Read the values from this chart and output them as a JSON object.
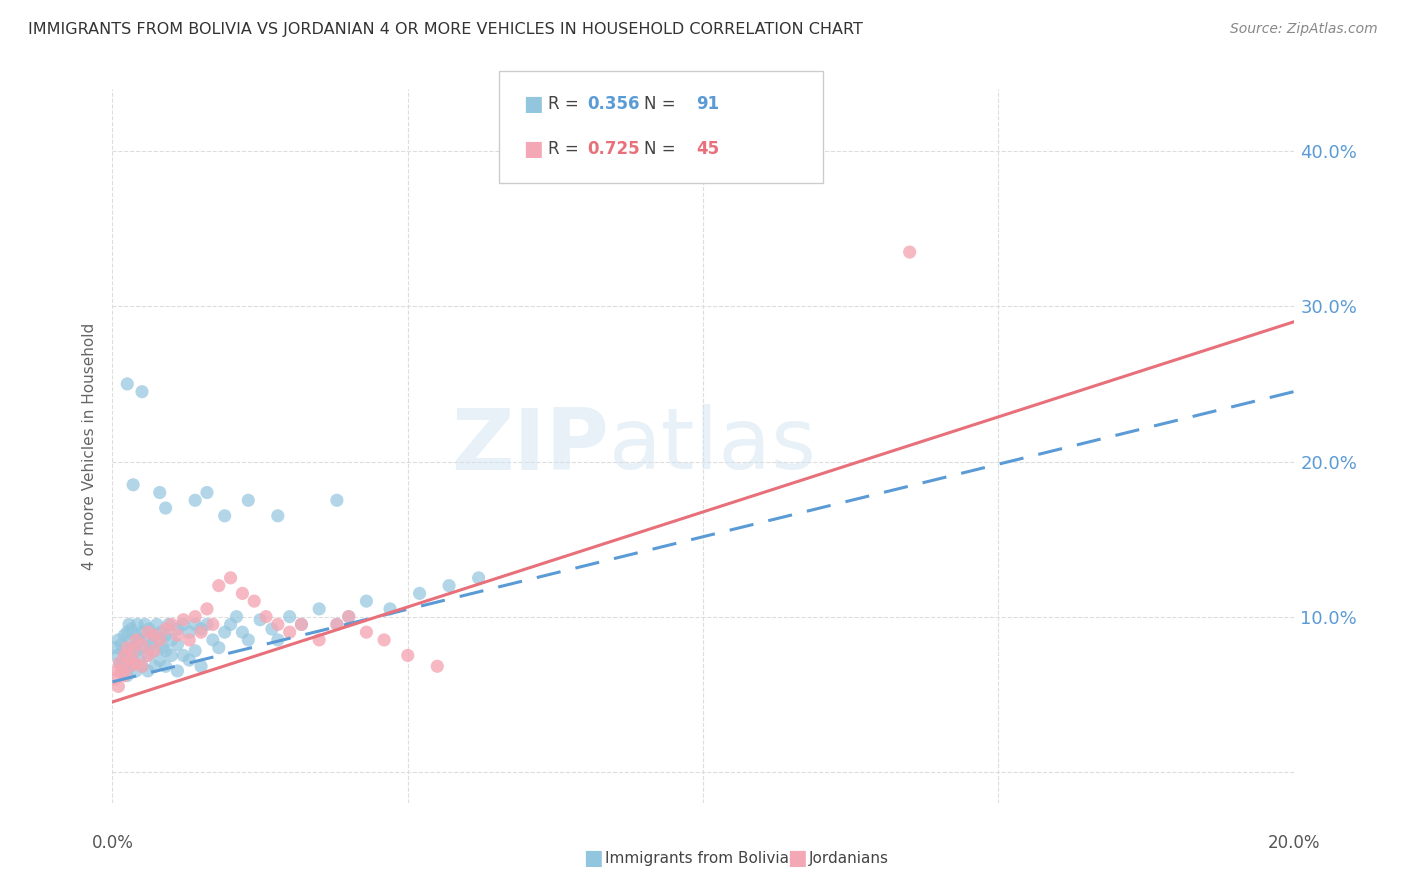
{
  "title": "IMMIGRANTS FROM BOLIVIA VS JORDANIAN 4 OR MORE VEHICLES IN HOUSEHOLD CORRELATION CHART",
  "source": "Source: ZipAtlas.com",
  "ylabel": "4 or more Vehicles in Household",
  "xlim": [
    0.0,
    0.2
  ],
  "ylim": [
    -0.02,
    0.44
  ],
  "bolivia_R": 0.356,
  "bolivia_N": 91,
  "jordan_R": 0.725,
  "jordan_N": 45,
  "bolivia_color": "#92c5de",
  "jordan_color": "#f4a7b4",
  "bolivia_line_color": "#5b9bd5",
  "jordan_line_color": "#e8707a",
  "legend_bolivia_label": "Immigrants from Bolivia",
  "legend_jordan_label": "Jordanians",
  "bolivia_scatter_x": [
    0.0005,
    0.0008,
    0.001,
    0.0012,
    0.0015,
    0.0015,
    0.0018,
    0.002,
    0.002,
    0.0022,
    0.0025,
    0.0025,
    0.0028,
    0.003,
    0.003,
    0.003,
    0.0032,
    0.0035,
    0.0035,
    0.004,
    0.004,
    0.004,
    0.0042,
    0.0045,
    0.0045,
    0.005,
    0.005,
    0.005,
    0.0055,
    0.006,
    0.006,
    0.006,
    0.0062,
    0.0065,
    0.007,
    0.007,
    0.0072,
    0.0075,
    0.008,
    0.008,
    0.0082,
    0.0085,
    0.009,
    0.009,
    0.009,
    0.0095,
    0.01,
    0.01,
    0.011,
    0.011,
    0.011,
    0.012,
    0.012,
    0.013,
    0.013,
    0.014,
    0.014,
    0.015,
    0.015,
    0.016,
    0.017,
    0.018,
    0.019,
    0.02,
    0.021,
    0.022,
    0.023,
    0.025,
    0.027,
    0.028,
    0.03,
    0.032,
    0.035,
    0.038,
    0.04,
    0.043,
    0.047,
    0.052,
    0.057,
    0.062,
    0.005,
    0.0025,
    0.008,
    0.009,
    0.0035,
    0.014,
    0.016,
    0.019,
    0.023,
    0.028,
    0.038
  ],
  "bolivia_scatter_y": [
    0.08,
    0.075,
    0.085,
    0.07,
    0.082,
    0.068,
    0.078,
    0.088,
    0.065,
    0.072,
    0.062,
    0.09,
    0.095,
    0.085,
    0.075,
    0.068,
    0.092,
    0.08,
    0.07,
    0.088,
    0.078,
    0.065,
    0.095,
    0.085,
    0.072,
    0.09,
    0.08,
    0.068,
    0.095,
    0.085,
    0.075,
    0.065,
    0.092,
    0.082,
    0.088,
    0.078,
    0.068,
    0.095,
    0.085,
    0.072,
    0.09,
    0.08,
    0.088,
    0.078,
    0.068,
    0.095,
    0.085,
    0.075,
    0.092,
    0.082,
    0.065,
    0.095,
    0.075,
    0.09,
    0.072,
    0.095,
    0.078,
    0.092,
    0.068,
    0.095,
    0.085,
    0.08,
    0.09,
    0.095,
    0.1,
    0.09,
    0.085,
    0.098,
    0.092,
    0.085,
    0.1,
    0.095,
    0.105,
    0.095,
    0.1,
    0.11,
    0.105,
    0.115,
    0.12,
    0.125,
    0.245,
    0.25,
    0.18,
    0.17,
    0.185,
    0.175,
    0.18,
    0.165,
    0.175,
    0.165,
    0.175
  ],
  "jordan_scatter_x": [
    0.0005,
    0.0008,
    0.001,
    0.0012,
    0.0015,
    0.002,
    0.002,
    0.0025,
    0.003,
    0.003,
    0.0035,
    0.004,
    0.004,
    0.005,
    0.005,
    0.006,
    0.006,
    0.007,
    0.007,
    0.008,
    0.009,
    0.01,
    0.011,
    0.012,
    0.013,
    0.014,
    0.015,
    0.016,
    0.017,
    0.018,
    0.02,
    0.022,
    0.024,
    0.026,
    0.028,
    0.03,
    0.032,
    0.035,
    0.038,
    0.04,
    0.043,
    0.046,
    0.05,
    0.055,
    0.135
  ],
  "jordan_scatter_y": [
    0.06,
    0.065,
    0.055,
    0.07,
    0.065,
    0.075,
    0.062,
    0.08,
    0.068,
    0.072,
    0.078,
    0.085,
    0.07,
    0.082,
    0.068,
    0.09,
    0.075,
    0.088,
    0.078,
    0.085,
    0.092,
    0.095,
    0.088,
    0.098,
    0.085,
    0.1,
    0.09,
    0.105,
    0.095,
    0.12,
    0.125,
    0.115,
    0.11,
    0.1,
    0.095,
    0.09,
    0.095,
    0.085,
    0.095,
    0.1,
    0.09,
    0.085,
    0.075,
    0.068,
    0.335
  ],
  "bolivia_trend_x": [
    0.0,
    0.2
  ],
  "bolivia_trend_y": [
    0.058,
    0.245
  ],
  "jordan_trend_x": [
    0.0,
    0.2
  ],
  "jordan_trend_y": [
    0.045,
    0.29
  ],
  "watermark_zip": "ZIP",
  "watermark_atlas": "atlas",
  "background_color": "#ffffff",
  "grid_color": "#dddddd",
  "yticks": [
    0.0,
    0.1,
    0.2,
    0.3,
    0.4
  ],
  "ytick_labels": [
    "",
    "10.0%",
    "20.0%",
    "30.0%",
    "40.0%"
  ],
  "xticks": [
    0.0,
    0.05,
    0.1,
    0.15,
    0.2
  ]
}
